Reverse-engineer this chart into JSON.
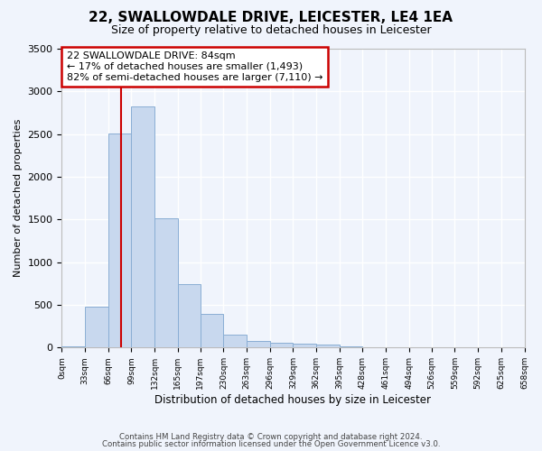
{
  "title": "22, SWALLOWDALE DRIVE, LEICESTER, LE4 1EA",
  "subtitle": "Size of property relative to detached houses in Leicester",
  "xlabel": "Distribution of detached houses by size in Leicester",
  "ylabel": "Number of detached properties",
  "bar_color": "#c8d8ee",
  "bar_edge_color": "#8aaed4",
  "bg_color": "#f0f4fc",
  "plot_bg_color": "#f0f4fc",
  "grid_color": "#ffffff",
  "vline_color": "#cc0000",
  "vline_x": 84,
  "annotation_text": "22 SWALLOWDALE DRIVE: 84sqm\n← 17% of detached houses are smaller (1,493)\n82% of semi-detached houses are larger (7,110) →",
  "annotation_box_facecolor": "#ffffff",
  "annotation_box_edge": "#cc0000",
  "bins": [
    0,
    33,
    66,
    99,
    132,
    165,
    197,
    230,
    263,
    296,
    329,
    362,
    395,
    428,
    461,
    494,
    526,
    559,
    592,
    625,
    658
  ],
  "bin_labels": [
    "0sqm",
    "33sqm",
    "66sqm",
    "99sqm",
    "132sqm",
    "165sqm",
    "197sqm",
    "230sqm",
    "263sqm",
    "296sqm",
    "329sqm",
    "362sqm",
    "395sqm",
    "428sqm",
    "461sqm",
    "494sqm",
    "526sqm",
    "559sqm",
    "592sqm",
    "625sqm",
    "658sqm"
  ],
  "counts": [
    18,
    480,
    2510,
    2820,
    1510,
    740,
    390,
    150,
    78,
    58,
    48,
    32,
    12,
    5,
    2,
    1,
    1,
    0,
    0,
    0
  ],
  "ylim": [
    0,
    3500
  ],
  "yticks": [
    0,
    500,
    1000,
    1500,
    2000,
    2500,
    3000,
    3500
  ],
  "footer1": "Contains HM Land Registry data © Crown copyright and database right 2024.",
  "footer2": "Contains public sector information licensed under the Open Government Licence v3.0."
}
